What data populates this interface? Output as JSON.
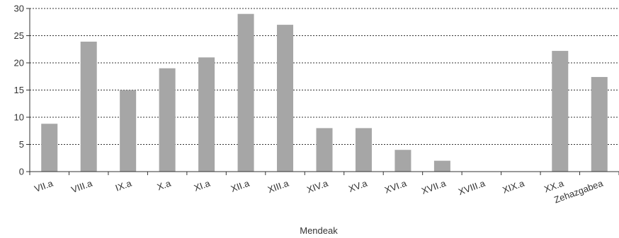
{
  "chart_data": {
    "type": "bar",
    "categories": [
      "VII.a",
      "VIII.a",
      "IX.a",
      "X.a",
      "XI.a",
      "XII.a",
      "XIII.a",
      "XIV.a",
      "XV.a",
      "XVI.a",
      "XVII.a",
      "XVIII.a",
      "XIX.a",
      "XX.a",
      "Zehazgabea"
    ],
    "values": [
      8.8,
      23.9,
      15.0,
      19.0,
      21.0,
      29.0,
      27.0,
      8.0,
      8.0,
      4.0,
      2.0,
      0,
      0,
      22.2,
      17.4
    ],
    "title": "",
    "xlabel": "Mendeak",
    "ylabel": "",
    "ylim": [
      0,
      30
    ],
    "yticks": [
      0,
      5,
      10,
      15,
      20,
      25,
      30
    ],
    "grid": "horizontal dotted",
    "legend": "none",
    "colors": {
      "bar": "#a6a6a6",
      "axis": "#333333",
      "grid": "#333333",
      "text": "#333333"
    }
  }
}
